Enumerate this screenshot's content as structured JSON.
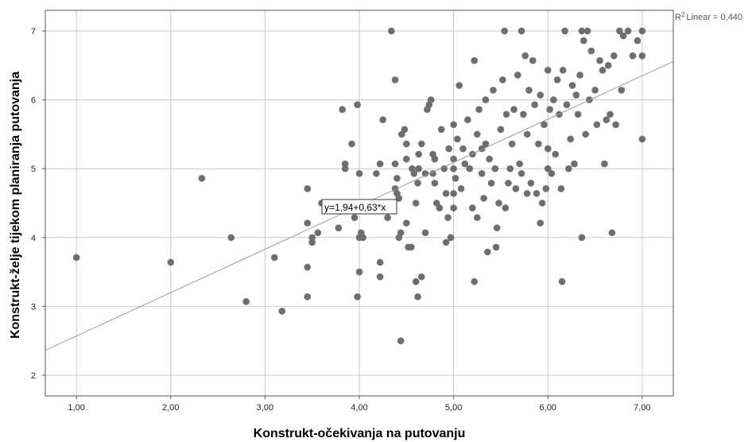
{
  "chart_data": {
    "type": "scatter",
    "xlabel": "Konstrukt-očekivanja na putovanju",
    "ylabel": "Konstrukt-želje tijekom planiranja putovanja",
    "xlim": [
      0.67,
      7.33
    ],
    "ylim": [
      1.7,
      7.3
    ],
    "x_ticks": [
      1,
      2,
      3,
      4,
      5,
      6,
      7
    ],
    "x_tick_labels": [
      "1,00",
      "2,00",
      "3,00",
      "4,00",
      "5,00",
      "6,00",
      "7,00"
    ],
    "y_ticks": [
      2,
      3,
      4,
      5,
      6,
      7
    ],
    "y_tick_labels": [
      "2",
      "3",
      "4",
      "5",
      "6",
      "7"
    ],
    "grid": true,
    "r2_label": "Linear = 0,440",
    "r2_prefix": "R",
    "r2_exp": "2",
    "equation_label": "y=1,94+0,63*x",
    "fit": {
      "intercept": 1.94,
      "slope": 0.63,
      "r2": 0.44
    },
    "colors": {
      "points": "#6e6e6e",
      "fit_line": "#9a9a9a",
      "grid": "#c9c9c9",
      "axis": "#555555"
    },
    "points": [
      [
        1.0,
        3.71
      ],
      [
        2.0,
        3.64
      ],
      [
        2.33,
        4.86
      ],
      [
        2.64,
        4.0
      ],
      [
        2.8,
        3.07
      ],
      [
        3.1,
        3.71
      ],
      [
        3.18,
        2.93
      ],
      [
        3.45,
        3.57
      ],
      [
        3.45,
        3.14
      ],
      [
        3.45,
        4.21
      ],
      [
        3.45,
        4.71
      ],
      [
        3.5,
        4.0
      ],
      [
        3.5,
        3.93
      ],
      [
        3.56,
        4.07
      ],
      [
        3.6,
        4.5
      ],
      [
        3.78,
        4.14
      ],
      [
        3.82,
        5.86
      ],
      [
        3.85,
        5.07
      ],
      [
        3.85,
        5.0
      ],
      [
        3.92,
        5.36
      ],
      [
        3.95,
        4.29
      ],
      [
        3.98,
        3.14
      ],
      [
        3.98,
        5.93
      ],
      [
        4.0,
        3.5
      ],
      [
        4.0,
        4.0
      ],
      [
        4.0,
        4.93
      ],
      [
        4.02,
        4.07
      ],
      [
        4.04,
        4.0
      ],
      [
        4.18,
        4.93
      ],
      [
        4.22,
        3.43
      ],
      [
        4.22,
        3.64
      ],
      [
        4.22,
        5.07
      ],
      [
        4.25,
        5.71
      ],
      [
        4.3,
        4.29
      ],
      [
        4.34,
        7.0
      ],
      [
        4.38,
        6.29
      ],
      [
        4.38,
        4.71
      ],
      [
        4.38,
        5.07
      ],
      [
        4.4,
        4.64
      ],
      [
        4.4,
        4.86
      ],
      [
        4.42,
        4.0
      ],
      [
        4.42,
        4.57
      ],
      [
        4.44,
        2.5
      ],
      [
        4.44,
        4.07
      ],
      [
        4.45,
        5.5
      ],
      [
        4.48,
        5.57
      ],
      [
        4.5,
        5.36
      ],
      [
        4.5,
        4.21
      ],
      [
        4.5,
        5.14
      ],
      [
        4.52,
        3.86
      ],
      [
        4.55,
        3.86
      ],
      [
        4.56,
        5.0
      ],
      [
        4.58,
        4.93
      ],
      [
        4.6,
        3.36
      ],
      [
        4.6,
        4.5
      ],
      [
        4.62,
        3.14
      ],
      [
        4.62,
        4.79
      ],
      [
        4.63,
        5.21
      ],
      [
        4.63,
        5.0
      ],
      [
        4.66,
        3.43
      ],
      [
        4.66,
        5.36
      ],
      [
        4.7,
        4.07
      ],
      [
        4.7,
        4.93
      ],
      [
        4.72,
        5.86
      ],
      [
        4.74,
        5.93
      ],
      [
        4.76,
        6.0
      ],
      [
        4.78,
        4.93
      ],
      [
        4.78,
        5.21
      ],
      [
        4.8,
        4.79
      ],
      [
        4.8,
        5.14
      ],
      [
        4.82,
        4.5
      ],
      [
        4.85,
        4.43
      ],
      [
        4.87,
        5.57
      ],
      [
        4.9,
        5.0
      ],
      [
        4.92,
        3.93
      ],
      [
        4.92,
        4.64
      ],
      [
        4.94,
        4.29
      ],
      [
        4.95,
        5.29
      ],
      [
        4.97,
        4.0
      ],
      [
        5.0,
        4.43
      ],
      [
        5.0,
        4.64
      ],
      [
        5.0,
        5.0
      ],
      [
        5.0,
        5.14
      ],
      [
        5.0,
        5.64
      ],
      [
        5.02,
        4.86
      ],
      [
        5.04,
        5.43
      ],
      [
        5.06,
        6.21
      ],
      [
        5.08,
        4.71
      ],
      [
        5.1,
        5.29
      ],
      [
        5.12,
        5.07
      ],
      [
        5.15,
        5.71
      ],
      [
        5.17,
        5.0
      ],
      [
        5.2,
        4.43
      ],
      [
        5.2,
        5.21
      ],
      [
        5.22,
        6.57
      ],
      [
        5.22,
        3.36
      ],
      [
        5.25,
        4.29
      ],
      [
        5.25,
        5.5
      ],
      [
        5.27,
        5.86
      ],
      [
        5.3,
        4.93
      ],
      [
        5.3,
        5.29
      ],
      [
        5.32,
        4.57
      ],
      [
        5.34,
        5.36
      ],
      [
        5.34,
        6.0
      ],
      [
        5.36,
        3.79
      ],
      [
        5.38,
        5.14
      ],
      [
        5.4,
        4.79
      ],
      [
        5.42,
        6.14
      ],
      [
        5.44,
        5.0
      ],
      [
        5.45,
        3.86
      ],
      [
        5.46,
        4.14
      ],
      [
        5.48,
        4.5
      ],
      [
        5.5,
        5.57
      ],
      [
        5.52,
        6.29
      ],
      [
        5.54,
        7.0
      ],
      [
        5.55,
        4.43
      ],
      [
        5.56,
        5.79
      ],
      [
        5.58,
        4.79
      ],
      [
        5.6,
        5.0
      ],
      [
        5.62,
        5.36
      ],
      [
        5.64,
        5.86
      ],
      [
        5.66,
        4.71
      ],
      [
        5.68,
        6.36
      ],
      [
        5.7,
        5.07
      ],
      [
        5.72,
        4.93
      ],
      [
        5.72,
        7.0
      ],
      [
        5.74,
        5.79
      ],
      [
        5.76,
        6.64
      ],
      [
        5.78,
        5.5
      ],
      [
        5.78,
        4.64
      ],
      [
        5.8,
        6.14
      ],
      [
        5.82,
        4.79
      ],
      [
        5.84,
        6.57
      ],
      [
        5.86,
        5.93
      ],
      [
        5.88,
        4.64
      ],
      [
        5.9,
        5.36
      ],
      [
        5.92,
        6.07
      ],
      [
        5.92,
        4.21
      ],
      [
        5.94,
        4.5
      ],
      [
        5.96,
        5.64
      ],
      [
        5.98,
        4.71
      ],
      [
        6.0,
        5.0
      ],
      [
        6.0,
        5.29
      ],
      [
        6.0,
        6.43
      ],
      [
        6.02,
        5.86
      ],
      [
        6.04,
        4.93
      ],
      [
        6.06,
        6.0
      ],
      [
        6.08,
        5.21
      ],
      [
        6.1,
        6.29
      ],
      [
        6.12,
        5.79
      ],
      [
        6.14,
        4.71
      ],
      [
        6.15,
        3.36
      ],
      [
        6.16,
        6.43
      ],
      [
        6.18,
        7.0
      ],
      [
        6.2,
        5.93
      ],
      [
        6.22,
        5.0
      ],
      [
        6.24,
        5.43
      ],
      [
        6.26,
        6.21
      ],
      [
        6.28,
        5.07
      ],
      [
        6.3,
        6.07
      ],
      [
        6.32,
        5.79
      ],
      [
        6.34,
        6.36
      ],
      [
        6.36,
        4.0
      ],
      [
        6.36,
        7.0
      ],
      [
        6.38,
        6.86
      ],
      [
        6.4,
        5.5
      ],
      [
        6.42,
        7.0
      ],
      [
        6.44,
        6.0
      ],
      [
        6.46,
        6.71
      ],
      [
        6.5,
        6.14
      ],
      [
        6.52,
        5.64
      ],
      [
        6.55,
        6.57
      ],
      [
        6.58,
        6.43
      ],
      [
        6.6,
        5.07
      ],
      [
        6.62,
        5.71
      ],
      [
        6.64,
        6.5
      ],
      [
        6.66,
        5.79
      ],
      [
        6.68,
        4.07
      ],
      [
        6.7,
        6.64
      ],
      [
        6.72,
        5.64
      ],
      [
        6.76,
        7.0
      ],
      [
        6.78,
        6.14
      ],
      [
        6.8,
        6.93
      ],
      [
        6.85,
        7.0
      ],
      [
        6.9,
        6.64
      ],
      [
        6.95,
        6.86
      ],
      [
        7.0,
        5.43
      ],
      [
        7.0,
        6.64
      ],
      [
        7.0,
        7.0
      ]
    ]
  }
}
